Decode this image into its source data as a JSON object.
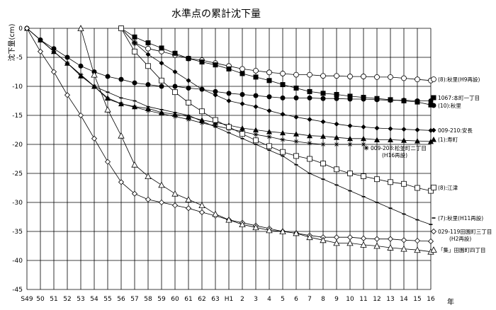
{
  "chart_data": {
    "type": "line",
    "title": "水準点の累計沈下量",
    "ylabel": "沈下量(cm)",
    "xlabel": "年",
    "x_categories": [
      "S49",
      "50",
      "51",
      "52",
      "53",
      "54",
      "55",
      "56",
      "57",
      "58",
      "59",
      "60",
      "61",
      "62",
      "63",
      "H1",
      "2",
      "3",
      "4",
      "5",
      "6",
      "7",
      "8",
      "9",
      "10",
      "11",
      "12",
      "13",
      "14",
      "15",
      "16"
    ],
    "y_ticks": [
      0,
      -5,
      -10,
      -15,
      -20,
      -25,
      -30,
      -35,
      -40,
      -45
    ],
    "ylim": [
      -45,
      0
    ],
    "grid": true,
    "series": [
      {
        "name": "(8):秋里(H9再設)",
        "marker": "circle-open",
        "points": [
          [
            7,
            0
          ],
          [
            8,
            -2.5
          ],
          [
            9,
            -3.5
          ],
          [
            10,
            -4
          ],
          [
            11,
            -4.6
          ],
          [
            12,
            -5.2
          ],
          [
            13,
            -5.5
          ],
          [
            14,
            -6
          ],
          [
            15,
            -6.5
          ],
          [
            16,
            -7
          ],
          [
            17,
            -7.3
          ],
          [
            18,
            -7.6
          ],
          [
            19,
            -7.8
          ],
          [
            20,
            -8
          ],
          [
            21,
            -8
          ],
          [
            22,
            -8.2
          ],
          [
            23,
            -8.2
          ],
          [
            24,
            -8.3
          ],
          [
            25,
            -8.3
          ],
          [
            26,
            -8.4
          ],
          [
            27,
            -8.4
          ],
          [
            28,
            -8.6
          ],
          [
            29,
            -8.8
          ],
          [
            30,
            -9
          ]
        ]
      },
      {
        "name": "1067:本町一丁目",
        "marker": "square-filled",
        "points": [
          [
            7,
            0
          ],
          [
            8,
            -1.5
          ],
          [
            9,
            -2.5
          ],
          [
            10,
            -3.4
          ],
          [
            11,
            -4.3
          ],
          [
            12,
            -5.2
          ],
          [
            13,
            -5.8
          ],
          [
            14,
            -6.3
          ],
          [
            15,
            -7
          ],
          [
            16,
            -7.8
          ],
          [
            17,
            -8.4
          ],
          [
            18,
            -9
          ],
          [
            19,
            -9.7
          ],
          [
            20,
            -10.3
          ],
          [
            21,
            -10.9
          ],
          [
            22,
            -11.2
          ],
          [
            23,
            -11.4
          ],
          [
            24,
            -11.7
          ],
          [
            25,
            -11.9
          ],
          [
            26,
            -12.1
          ],
          [
            27,
            -12.3
          ],
          [
            28,
            -12.5
          ],
          [
            29,
            -12.7
          ],
          [
            30,
            -13.2
          ]
        ]
      },
      {
        "name": "(10):秋里",
        "marker": "circle-filled",
        "points": [
          [
            0,
            0
          ],
          [
            1,
            -2
          ],
          [
            2,
            -3.5
          ],
          [
            3,
            -5
          ],
          [
            4,
            -6.5
          ],
          [
            5,
            -7.5
          ],
          [
            6,
            -8.3
          ],
          [
            7,
            -8.8
          ],
          [
            8,
            -9.4
          ],
          [
            9,
            -9.7
          ],
          [
            10,
            -10
          ],
          [
            11,
            -10
          ],
          [
            12,
            -10.3
          ],
          [
            13,
            -10.5
          ],
          [
            14,
            -10.9
          ],
          [
            15,
            -11.2
          ],
          [
            16,
            -11.4
          ],
          [
            17,
            -11.6
          ],
          [
            18,
            -11.8
          ],
          [
            19,
            -12
          ],
          [
            20,
            -12
          ],
          [
            21,
            -12
          ],
          [
            22,
            -12.1
          ],
          [
            23,
            -12.1
          ],
          [
            24,
            -12.2
          ],
          [
            25,
            -12.2
          ],
          [
            26,
            -12.3
          ],
          [
            27,
            -12.4
          ],
          [
            28,
            -12.4
          ],
          [
            29,
            -12.5
          ],
          [
            30,
            -12.5
          ]
        ]
      },
      {
        "name": "009-210:安長",
        "marker": "diamond-filled",
        "points": [
          [
            7,
            0
          ],
          [
            8,
            -2.5
          ],
          [
            9,
            -4.5
          ],
          [
            10,
            -6
          ],
          [
            11,
            -7.5
          ],
          [
            12,
            -9
          ],
          [
            13,
            -10.5
          ],
          [
            14,
            -11.5
          ],
          [
            15,
            -12.5
          ],
          [
            16,
            -13
          ],
          [
            17,
            -13.5
          ],
          [
            18,
            -14.2
          ],
          [
            19,
            -14.8
          ],
          [
            20,
            -15.3
          ],
          [
            21,
            -15.7
          ],
          [
            22,
            -16.1
          ],
          [
            23,
            -16.5
          ],
          [
            24,
            -16.8
          ],
          [
            25,
            -17
          ],
          [
            26,
            -17.2
          ],
          [
            27,
            -17.3
          ],
          [
            28,
            -17.4
          ],
          [
            29,
            -17.5
          ],
          [
            30,
            -17.6
          ]
        ]
      },
      {
        "name": "(1):寿町",
        "marker": "triangle-filled",
        "points": [
          [
            0,
            0
          ],
          [
            1,
            -2
          ],
          [
            2,
            -4
          ],
          [
            3,
            -6
          ],
          [
            4,
            -8.2
          ],
          [
            5,
            -10
          ],
          [
            6,
            -12
          ],
          [
            7,
            -13
          ],
          [
            8,
            -13.5
          ],
          [
            9,
            -13.8
          ],
          [
            10,
            -14.5
          ],
          [
            11,
            -14.8
          ],
          [
            12,
            -15.2
          ],
          [
            13,
            -15.8
          ],
          [
            14,
            -16.2
          ],
          [
            15,
            -16.7
          ],
          [
            16,
            -17.2
          ],
          [
            17,
            -17.5
          ],
          [
            18,
            -17.8
          ],
          [
            19,
            -18
          ],
          [
            20,
            -18.2
          ],
          [
            21,
            -18.5
          ],
          [
            22,
            -18.6
          ],
          [
            23,
            -18.8
          ],
          [
            24,
            -19
          ],
          [
            25,
            -19
          ],
          [
            26,
            -19.2
          ],
          [
            27,
            -19.2
          ],
          [
            28,
            -19.3
          ],
          [
            29,
            -19.4
          ],
          [
            30,
            -19.5
          ]
        ]
      },
      {
        "name": "009-208:松並町二丁目(H16再設)",
        "marker": "asterisk",
        "points": [
          [
            0,
            0
          ],
          [
            1,
            -2
          ],
          [
            2,
            -4
          ],
          [
            3,
            -6
          ],
          [
            4,
            -8
          ],
          [
            5,
            -10
          ],
          [
            6,
            -12.2
          ],
          [
            7,
            -13
          ],
          [
            8,
            -13.6
          ],
          [
            9,
            -14.2
          ],
          [
            10,
            -14.7
          ],
          [
            11,
            -15.2
          ],
          [
            12,
            -15.7
          ],
          [
            13,
            -16.3
          ],
          [
            14,
            -16.8
          ],
          [
            15,
            -17.3
          ],
          [
            16,
            -17.8
          ],
          [
            17,
            -18.3
          ],
          [
            18,
            -18.7
          ],
          [
            19,
            -19.2
          ],
          [
            20,
            -19.5
          ],
          [
            21,
            -19.8
          ],
          [
            22,
            -20
          ],
          [
            23,
            -20
          ],
          [
            24,
            -20
          ],
          [
            25,
            -20
          ]
        ]
      },
      {
        "name": "(8):江津",
        "marker": "square-open",
        "points": [
          [
            7,
            0
          ],
          [
            8,
            -4
          ],
          [
            9,
            -6.5
          ],
          [
            10,
            -9
          ],
          [
            11,
            -11
          ],
          [
            12,
            -12.8
          ],
          [
            13,
            -14.3
          ],
          [
            14,
            -15.8
          ],
          [
            15,
            -17
          ],
          [
            16,
            -18.2
          ],
          [
            17,
            -19.3
          ],
          [
            18,
            -20.3
          ],
          [
            19,
            -21.3
          ],
          [
            20,
            -22
          ],
          [
            21,
            -22.5
          ],
          [
            22,
            -23.3
          ],
          [
            23,
            -24.3
          ],
          [
            24,
            -25
          ],
          [
            25,
            -25.5
          ],
          [
            26,
            -26
          ],
          [
            27,
            -26.5
          ],
          [
            28,
            -26.8
          ],
          [
            29,
            -27.5
          ],
          [
            30,
            -28
          ]
        ]
      },
      {
        "name": "(7):秋里(H11再設)",
        "marker": "dash",
        "points": [
          [
            0,
            0
          ],
          [
            1,
            -2
          ],
          [
            2,
            -4
          ],
          [
            3,
            -6
          ],
          [
            4,
            -8
          ],
          [
            5,
            -10
          ],
          [
            6,
            -11
          ],
          [
            7,
            -12
          ],
          [
            8,
            -12.5
          ],
          [
            9,
            -13.5
          ],
          [
            10,
            -14
          ],
          [
            11,
            -14.5
          ],
          [
            12,
            -15
          ],
          [
            13,
            -16
          ],
          [
            14,
            -17
          ],
          [
            15,
            -18
          ],
          [
            16,
            -19
          ],
          [
            17,
            -20
          ],
          [
            18,
            -21
          ],
          [
            19,
            -22
          ],
          [
            20,
            -23.5
          ],
          [
            21,
            -25
          ],
          [
            22,
            -26
          ],
          [
            23,
            -27
          ],
          [
            24,
            -28
          ],
          [
            25,
            -29
          ],
          [
            26,
            -30
          ],
          [
            27,
            -31
          ],
          [
            28,
            -32
          ],
          [
            29,
            -33
          ],
          [
            30,
            -33.8
          ]
        ]
      },
      {
        "name": "029-119田園町三丁目(H2再設)",
        "marker": "diamond-open",
        "points": [
          [
            0,
            0
          ],
          [
            1,
            -4
          ],
          [
            2,
            -7.5
          ],
          [
            3,
            -11.5
          ],
          [
            4,
            -15
          ],
          [
            5,
            -19
          ],
          [
            6,
            -23
          ],
          [
            7,
            -26.5
          ],
          [
            8,
            -28.5
          ],
          [
            9,
            -29.5
          ],
          [
            10,
            -30
          ],
          [
            11,
            -30.5
          ],
          [
            12,
            -31
          ],
          [
            13,
            -31.7
          ],
          [
            14,
            -32.3
          ],
          [
            15,
            -33
          ],
          [
            16,
            -33.5
          ],
          [
            17,
            -34
          ],
          [
            18,
            -34.5
          ],
          [
            19,
            -35
          ],
          [
            20,
            -35.3
          ],
          [
            21,
            -35.7
          ],
          [
            22,
            -36
          ],
          [
            23,
            -36
          ],
          [
            24,
            -36
          ],
          [
            25,
            -36.2
          ],
          [
            26,
            -36.3
          ],
          [
            27,
            -36.3
          ],
          [
            28,
            -36.5
          ],
          [
            29,
            -36.6
          ],
          [
            30,
            -36.7
          ]
        ]
      },
      {
        "name": "「集」田園町四丁目",
        "marker": "triangle-open",
        "points": [
          [
            4,
            0
          ],
          [
            5,
            -8
          ],
          [
            6,
            -14
          ],
          [
            7,
            -18.5
          ],
          [
            8,
            -23.5
          ],
          [
            9,
            -25.5
          ],
          [
            10,
            -27
          ],
          [
            11,
            -28.5
          ],
          [
            12,
            -29.5
          ],
          [
            13,
            -30.5
          ],
          [
            14,
            -32
          ],
          [
            15,
            -33
          ],
          [
            16,
            -33.8
          ],
          [
            17,
            -34.3
          ],
          [
            18,
            -34.8
          ],
          [
            19,
            -35
          ],
          [
            20,
            -35.3
          ],
          [
            21,
            -36
          ],
          [
            22,
            -36.5
          ],
          [
            23,
            -37
          ],
          [
            24,
            -37
          ],
          [
            25,
            -37.3
          ],
          [
            26,
            -37.5
          ],
          [
            27,
            -37.8
          ],
          [
            28,
            -38
          ],
          [
            29,
            -38.2
          ],
          [
            30,
            -38.5
          ]
        ]
      }
    ]
  }
}
